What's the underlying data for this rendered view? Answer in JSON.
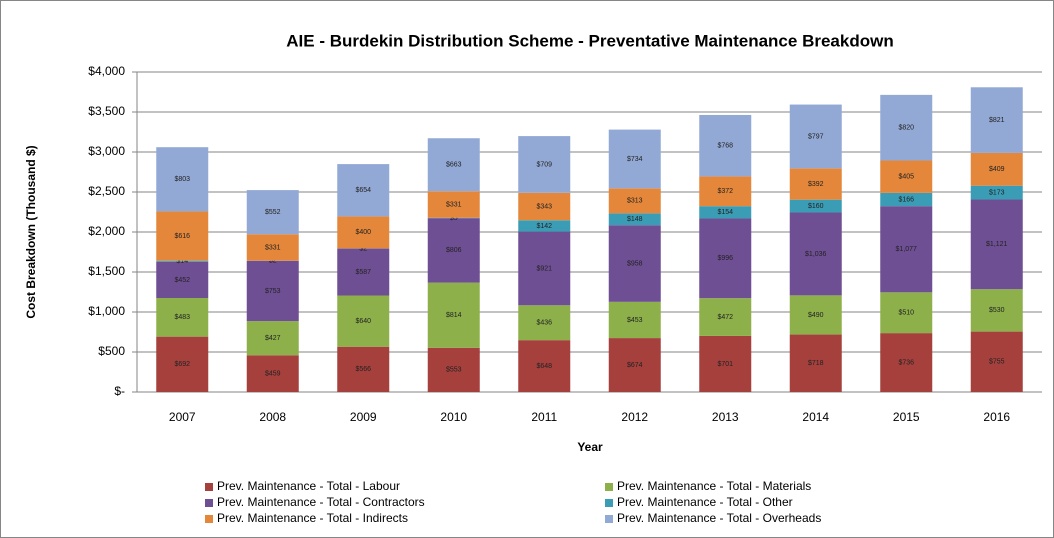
{
  "chart_data": {
    "type": "stacked_bar",
    "title": "AIE - Burdekin Distribution Scheme - Preventative Maintenance Breakdown",
    "x_label": "Year",
    "y_label": "Cost Breakdown  (Thousand $)",
    "categories": [
      "2007",
      "2008",
      "2009",
      "2010",
      "2011",
      "2012",
      "2013",
      "2014",
      "2015",
      "2016"
    ],
    "series": [
      {
        "name": "Prev. Maintenance - Total  - Labour",
        "color": "#a5403d",
        "values": [
          692,
          459,
          566,
          553,
          648,
          674,
          701,
          718,
          736,
          755
        ],
        "value_labels": [
          "$692",
          "$459",
          "$566",
          "$553",
          "$648",
          "$674",
          "$701",
          "$718",
          "$736",
          "$755"
        ]
      },
      {
        "name": "Prev. Maintenance - Total  - Materials",
        "color": "#8db04b",
        "values": [
          483,
          427,
          640,
          814,
          436,
          453,
          472,
          490,
          510,
          530
        ],
        "value_labels": [
          "$483",
          "$427",
          "$640",
          "$814",
          "$436",
          "$453",
          "$472",
          "$490",
          "$510",
          "$530"
        ]
      },
      {
        "name": "Prev. Maintenance - Total  - Contractors",
        "color": "#6f4f93",
        "values": [
          452,
          753,
          587,
          806,
          921,
          958,
          996,
          1036,
          1077,
          1121
        ],
        "value_labels": [
          "$452",
          "$753",
          "$587",
          "$806",
          "$921",
          "$958",
          "$996",
          "$1,036",
          "$1,077",
          "$1,121"
        ]
      },
      {
        "name": "Prev. Maintenance - Total  - Other",
        "color": "#3b9db5",
        "values": [
          14,
          2,
          2,
          5,
          142,
          148,
          154,
          160,
          166,
          173
        ],
        "value_labels": [
          "$14",
          "$2",
          "$2",
          "$5",
          "$142",
          "$148",
          "$154",
          "$160",
          "$166",
          "$173"
        ]
      },
      {
        "name": "Prev. Maintenance - Total  - Indirects",
        "color": "#e4873b",
        "values": [
          616,
          331,
          400,
          331,
          343,
          313,
          372,
          392,
          405,
          409
        ],
        "value_labels": [
          "$616",
          "$331",
          "$400",
          "$331",
          "$343",
          "$313",
          "$372",
          "$392",
          "$405",
          "$409"
        ]
      },
      {
        "name": "Prev. Maintenance - Total  - Overheads",
        "color": "#93a9d5",
        "values": [
          803,
          552,
          654,
          663,
          709,
          734,
          768,
          797,
          820,
          821
        ],
        "value_labels": [
          "$803",
          "$552",
          "$654",
          "$663",
          "$709",
          "$734",
          "$768",
          "$797",
          "$820",
          "$821"
        ]
      }
    ],
    "ylim": [
      0,
      4000
    ],
    "yticks": [
      {
        "value": 0,
        "label": "$-"
      },
      {
        "value": 500,
        "label": "$500"
      },
      {
        "value": 1000,
        "label": "$1,000"
      },
      {
        "value": 1500,
        "label": "$1,500"
      },
      {
        "value": 2000,
        "label": "$2,000"
      },
      {
        "value": 2500,
        "label": "$2,500"
      },
      {
        "value": 3000,
        "label": "$3,000"
      },
      {
        "value": 3500,
        "label": "$3,500"
      },
      {
        "value": 4000,
        "label": "$4,000"
      }
    ],
    "grid": true,
    "legend": "bottom"
  }
}
